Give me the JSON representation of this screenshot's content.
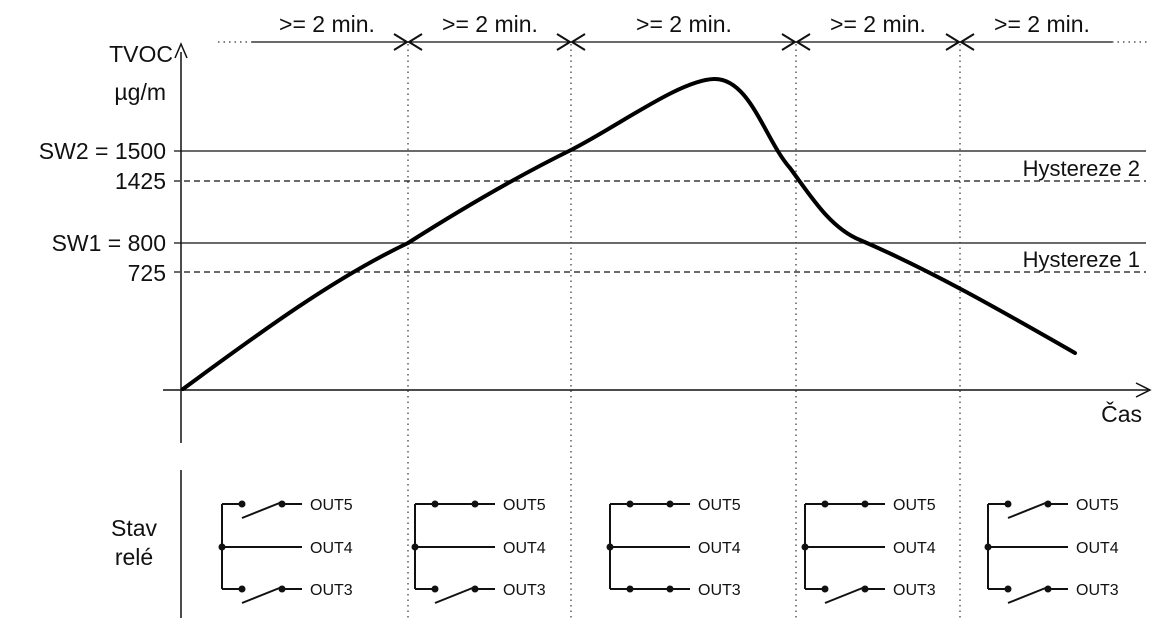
{
  "y_axis": {
    "label_line1": "TVOC",
    "label_line2": "µg/m"
  },
  "x_axis": {
    "label": "Čas"
  },
  "thresholds": [
    {
      "label": "SW2 = 1500",
      "style": "solid"
    },
    {
      "label": "1425",
      "style": "dashed"
    },
    {
      "label": "SW1 = 800",
      "style": "solid"
    },
    {
      "label": "725",
      "style": "dashed"
    }
  ],
  "hysteresis_labels": [
    "Hystereze 2",
    "Hystereze 1"
  ],
  "intervals": [
    ">= 2 min.",
    ">= 2 min.",
    ">= 2 min.",
    ">= 2 min.",
    ">= 2 min."
  ],
  "relay_section": {
    "label_line1": "Stav",
    "label_line2": "relé"
  },
  "relay_groups": [
    {
      "out5": "OUT5",
      "out4": "OUT4",
      "out3": "OUT3",
      "out5_closed": false,
      "out3_closed": false
    },
    {
      "out5": "OUT5",
      "out4": "OUT4",
      "out3": "OUT3",
      "out5_closed": true,
      "out3_closed": false
    },
    {
      "out5": "OUT5",
      "out4": "OUT4",
      "out3": "OUT3",
      "out5_closed": true,
      "out3_closed": true
    },
    {
      "out5": "OUT5",
      "out4": "OUT4",
      "out3": "OUT3",
      "out5_closed": true,
      "out3_closed": false
    },
    {
      "out5": "OUT5",
      "out4": "OUT4",
      "out3": "OUT3",
      "out5_closed": false,
      "out3_closed": false
    }
  ]
}
